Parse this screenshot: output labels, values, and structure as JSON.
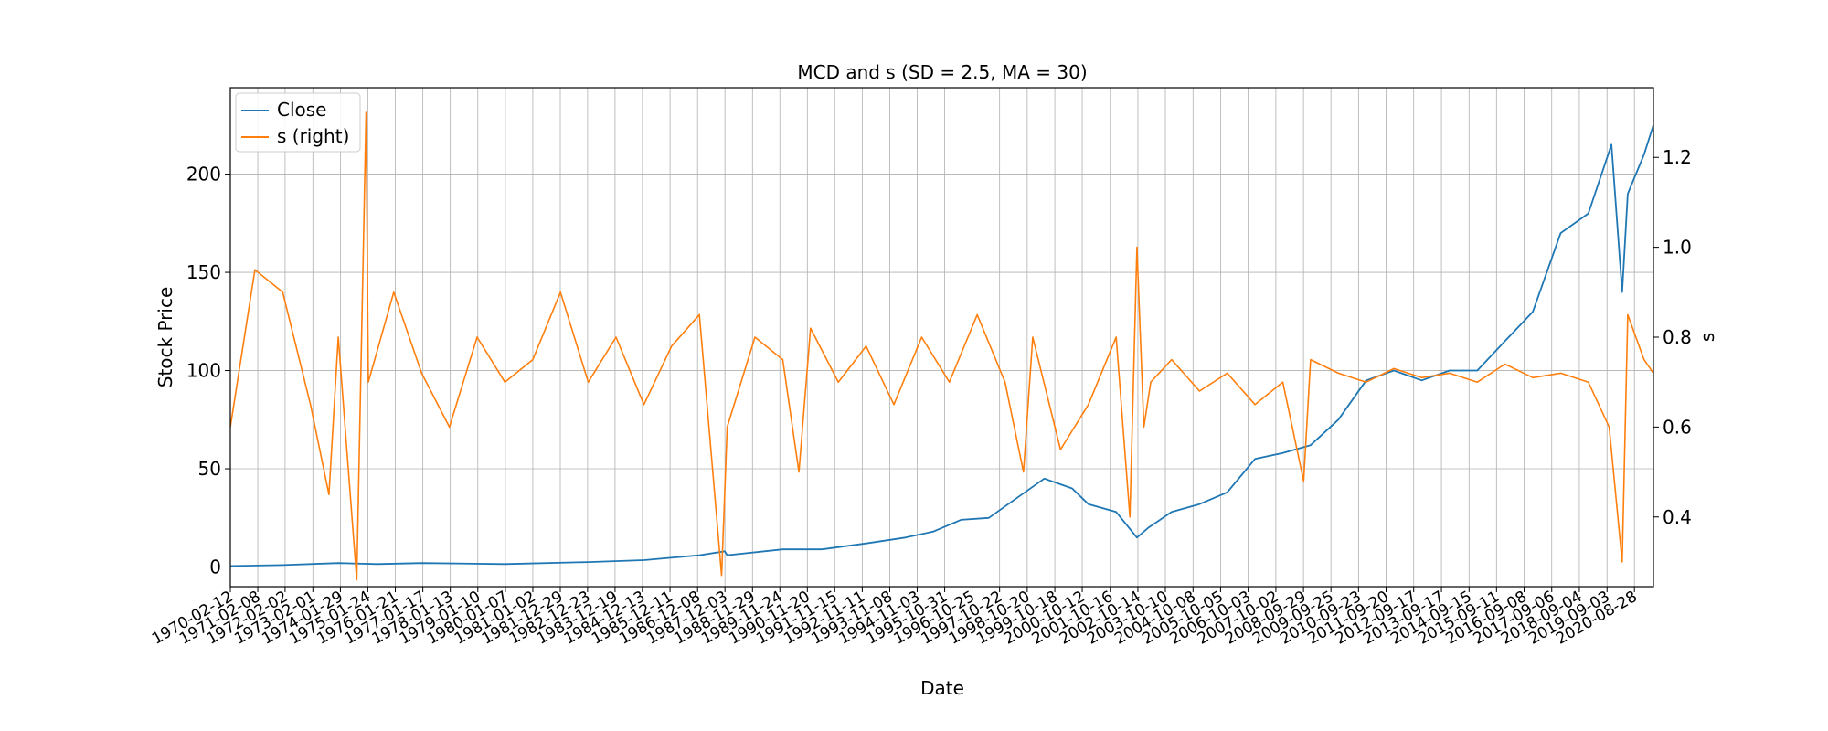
{
  "chart_data": {
    "type": "line",
    "title": "MCD and s (SD = 2.5, MA = 30)",
    "xlabel": "Date",
    "ylabel": "Stock Price",
    "ylabel_right": "s",
    "ylim": [
      -10,
      244
    ],
    "ylim_right": [
      0.245,
      1.355
    ],
    "xlim": [
      "1970-02-12",
      "2021-05-05"
    ],
    "grid": true,
    "legend_position": "upper-left",
    "yticks": [
      0,
      50,
      100,
      150,
      200
    ],
    "yticks_right": [
      0.4,
      0.6,
      0.8,
      1.0,
      1.2
    ],
    "x_tick_labels": [
      "1970-02-12",
      "1971-02-08",
      "1972-02-02",
      "1973-02-01",
      "1974-01-29",
      "1975-01-24",
      "1976-01-21",
      "1977-01-17",
      "1978-01-13",
      "1979-01-10",
      "1980-01-07",
      "1981-01-02",
      "1981-12-29",
      "1982-12-23",
      "1983-12-19",
      "1984-12-13",
      "1985-12-11",
      "1986-12-08",
      "1987-12-03",
      "1988-11-29",
      "1989-11-24",
      "1990-11-20",
      "1991-11-15",
      "1992-11-11",
      "1993-11-08",
      "1994-11-03",
      "1995-10-31",
      "1996-10-25",
      "1997-10-22",
      "1998-10-20",
      "1999-10-18",
      "2000-10-12",
      "2001-10-16",
      "2002-10-14",
      "2003-10-10",
      "2004-10-08",
      "2005-10-05",
      "2006-10-03",
      "2007-10-02",
      "2008-09-29",
      "2009-09-25",
      "2010-09-23",
      "2011-09-20",
      "2012-09-17",
      "2013-09-17",
      "2014-09-15",
      "2015-09-11",
      "2016-09-08",
      "2017-09-06",
      "2018-09-04",
      "2019-09-03",
      "2020-08-28"
    ],
    "series": [
      {
        "name": "Close",
        "axis": "left",
        "color": "#1f77b4",
        "x": [
          "1970-02-12",
          "1972-01-01",
          "1974-01-01",
          "1975-06-01",
          "1977-01-01",
          "1980-01-01",
          "1983-01-01",
          "1985-01-01",
          "1987-01-01",
          "1987-12-01",
          "1988-01-01",
          "1990-01-01",
          "1991-06-01",
          "1993-01-01",
          "1994-06-01",
          "1995-06-01",
          "1996-06-01",
          "1997-06-01",
          "1998-06-01",
          "1999-06-01",
          "2000-06-01",
          "2001-01-01",
          "2002-01-01",
          "2002-10-01",
          "2003-03-01",
          "2004-01-01",
          "2005-01-01",
          "2006-01-01",
          "2007-01-01",
          "2008-01-01",
          "2009-01-01",
          "2010-01-01",
          "2011-01-01",
          "2012-01-01",
          "2013-01-01",
          "2014-01-01",
          "2015-01-01",
          "2016-01-01",
          "2017-01-01",
          "2018-01-01",
          "2019-01-01",
          "2019-11-01",
          "2020-03-20",
          "2020-06-01",
          "2021-01-01",
          "2021-05-05"
        ],
        "values": [
          0.5,
          1,
          2,
          1.5,
          2,
          1.5,
          2.5,
          3.5,
          6,
          8,
          6,
          9,
          9,
          12,
          15,
          18,
          24,
          25,
          35,
          45,
          40,
          32,
          28,
          15,
          20,
          28,
          32,
          38,
          55,
          58,
          62,
          75,
          95,
          100,
          95,
          100,
          100,
          115,
          130,
          170,
          180,
          215,
          140,
          190,
          210,
          225
        ]
      },
      {
        "name": "s (right)",
        "axis": "right",
        "color": "#ff7f0e",
        "x": [
          "1970-02-12",
          "1971-01-01",
          "1972-01-01",
          "1973-01-01",
          "1973-09-01",
          "1974-01-01",
          "1974-09-01",
          "1975-01-01",
          "1975-02-01",
          "1976-01-01",
          "1977-01-01",
          "1978-01-01",
          "1979-01-01",
          "1980-01-01",
          "1981-01-01",
          "1982-01-01",
          "1983-01-01",
          "1984-01-01",
          "1985-01-01",
          "1986-01-01",
          "1987-01-01",
          "1987-10-20",
          "1988-01-01",
          "1989-01-01",
          "1990-01-01",
          "1990-08-01",
          "1991-01-01",
          "1992-01-01",
          "1993-01-01",
          "1994-01-01",
          "1995-01-01",
          "1996-01-01",
          "1997-01-01",
          "1998-01-01",
          "1998-09-01",
          "1999-01-01",
          "2000-01-01",
          "2001-01-01",
          "2002-01-01",
          "2002-07-01",
          "2002-10-01",
          "2003-01-01",
          "2003-04-01",
          "2004-01-01",
          "2005-01-01",
          "2006-01-01",
          "2007-01-01",
          "2008-01-01",
          "2008-10-01",
          "2009-01-01",
          "2010-01-01",
          "2011-01-01",
          "2012-01-01",
          "2013-01-01",
          "2014-01-01",
          "2015-01-01",
          "2016-01-01",
          "2017-01-01",
          "2018-01-01",
          "2019-01-01",
          "2019-10-01",
          "2020-03-20",
          "2020-06-01",
          "2021-01-01",
          "2021-05-05"
        ],
        "values": [
          0.6,
          0.95,
          0.9,
          0.65,
          0.45,
          0.8,
          0.26,
          1.3,
          0.7,
          0.9,
          0.72,
          0.6,
          0.8,
          0.7,
          0.75,
          0.9,
          0.7,
          0.8,
          0.65,
          0.78,
          0.85,
          0.27,
          0.6,
          0.8,
          0.75,
          0.5,
          0.82,
          0.7,
          0.78,
          0.65,
          0.8,
          0.7,
          0.85,
          0.7,
          0.5,
          0.8,
          0.55,
          0.65,
          0.8,
          0.4,
          1.0,
          0.6,
          0.7,
          0.75,
          0.68,
          0.72,
          0.65,
          0.7,
          0.48,
          0.75,
          0.72,
          0.7,
          0.73,
          0.71,
          0.72,
          0.7,
          0.74,
          0.71,
          0.72,
          0.7,
          0.6,
          0.3,
          0.85,
          0.75,
          0.72
        ]
      }
    ]
  }
}
